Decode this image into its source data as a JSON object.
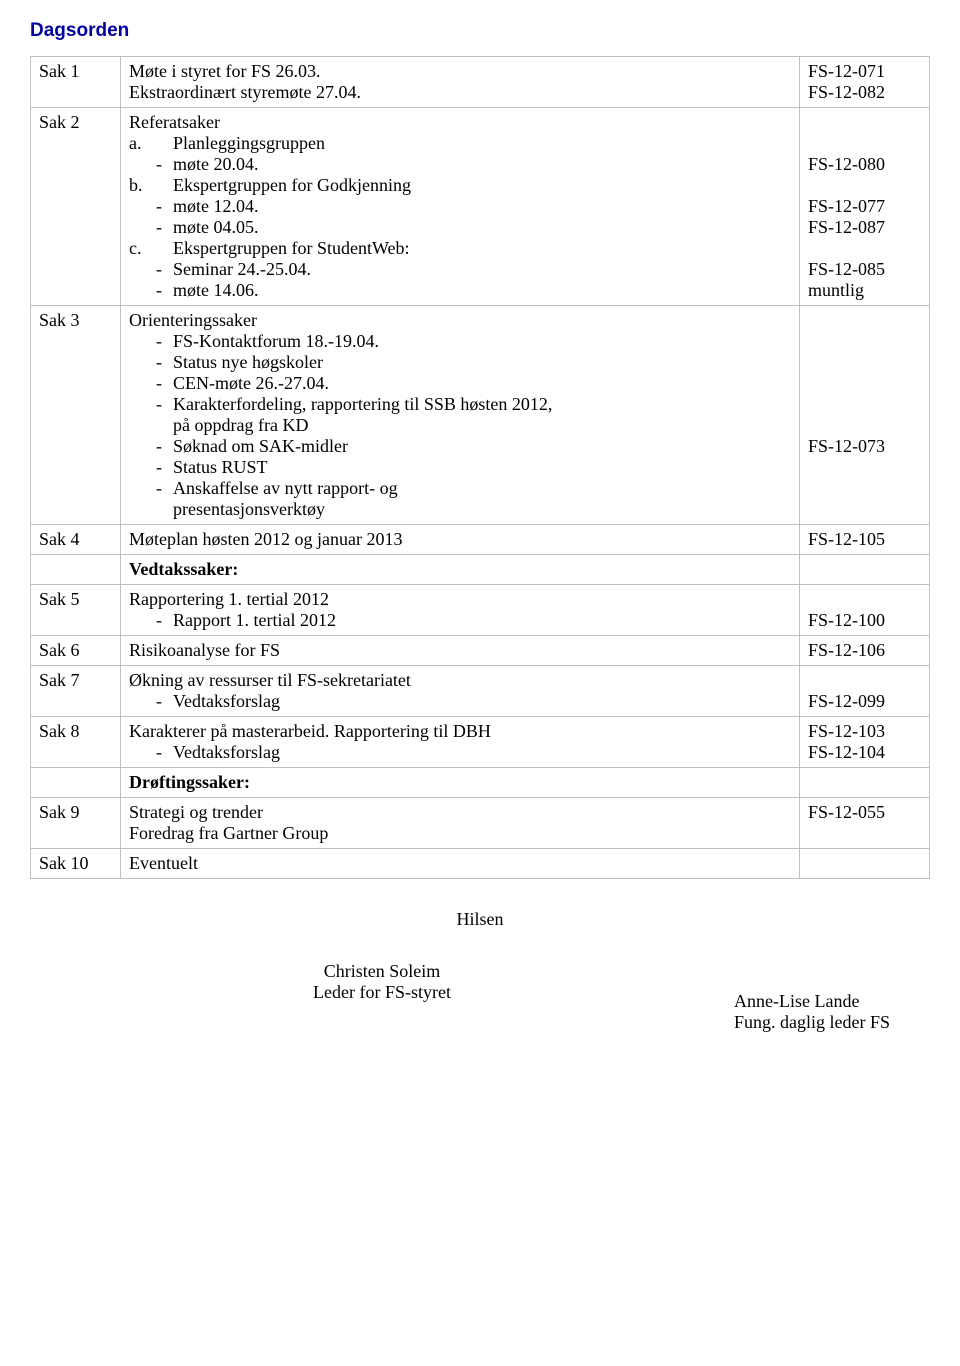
{
  "page": {
    "title": "Dagsorden"
  },
  "rows": {
    "sak1": {
      "label": "Sak 1",
      "line1": "Møte i styret for FS 26.03.",
      "line2": "Ekstraordinært styremøte 27.04.",
      "ref": "FS-12-071\nFS-12-082"
    },
    "sak2": {
      "label": "Sak 2",
      "heading": "Referatsaker",
      "a_label": "a.",
      "a_text": "Planleggingsgruppen",
      "a_m1": "møte 20.04.",
      "b_label": "b.",
      "b_text": "Ekspertgruppen for Godkjenning",
      "b_m1": "møte 12.04.",
      "b_m2": "møte 04.05.",
      "c_label": "c.",
      "c_text": "Ekspertgruppen for StudentWeb:",
      "c_m1": "Seminar 24.-25.04.",
      "c_m2": "møte 14.06.",
      "ref": "\n\nFS-12-080\n\nFS-12-077\nFS-12-087\n\nFS-12-085\nmuntlig"
    },
    "sak3": {
      "label": "Sak 3",
      "heading": "Orienteringssaker",
      "i1": "FS-Kontaktforum 18.-19.04.",
      "i2": "Status nye høgskoler",
      "i3": "CEN-møte 26.-27.04.",
      "i4a": "Karakterfordeling, rapportering til SSB høsten 2012,",
      "i4b": "på oppdrag fra KD",
      "i5": "Søknad om SAK-midler",
      "i6": "Status RUST",
      "i7a": "Anskaffelse av nytt rapport- og",
      "i7b": "presentasjonsverktøy",
      "ref": "\n\n\n\n\n\nFS-12-073"
    },
    "sak4": {
      "label": "Sak 4",
      "text": "Møteplan høsten 2012 og januar 2013",
      "ref": "FS-12-105"
    },
    "vedtak": {
      "text": "Vedtakssaker:"
    },
    "sak5": {
      "label": "Sak 5",
      "heading": "Rapportering 1. tertial 2012",
      "i1": "Rapport 1. tertial 2012",
      "ref": "\nFS-12-100"
    },
    "sak6": {
      "label": "Sak 6",
      "text": "Risikoanalyse for FS",
      "ref": "FS-12-106"
    },
    "sak7": {
      "label": "Sak 7",
      "heading": "Økning av ressurser til FS-sekretariatet",
      "i1": "Vedtaksforslag",
      "ref": "\nFS-12-099"
    },
    "sak8": {
      "label": "Sak 8",
      "heading": "Karakterer på masterarbeid. Rapportering til DBH",
      "i1": "Vedtaksforslag",
      "ref": "FS-12-103\nFS-12-104"
    },
    "drofting": {
      "text": "Drøftingssaker:"
    },
    "sak9": {
      "label": "Sak 9",
      "line1": "Strategi og trender",
      "line2": "Foredrag fra Gartner Group",
      "ref": "FS-12-055"
    },
    "sak10": {
      "label": "Sak 10",
      "text": "Eventuelt"
    }
  },
  "signoff": {
    "greeting": "Hilsen",
    "left_name": "Christen Soleim",
    "left_role": "Leder for FS-styret",
    "right_name": "Anne-Lise Lande",
    "right_role": "Fung. daglig leder FS"
  }
}
